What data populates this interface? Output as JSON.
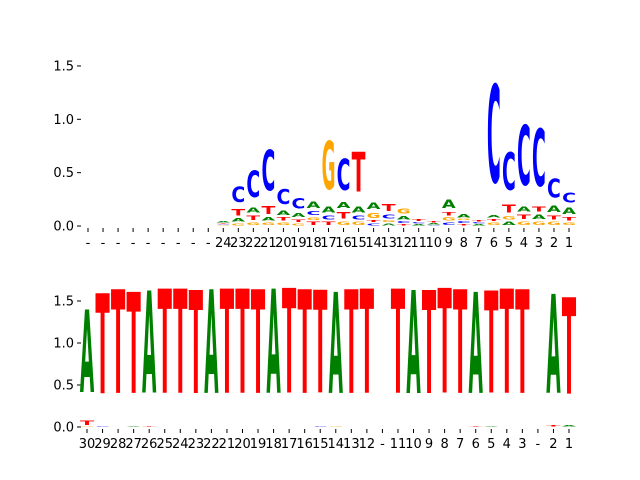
{
  "colors": {
    "A": "#008000",
    "C": "#0000ff",
    "G": "#ffa500",
    "T": "#ff0000"
  },
  "chart_data": [
    {
      "type": "sequence-logo",
      "ylim": [
        0,
        1.6
      ],
      "yticks": [
        "0.0",
        "0.5",
        "1.0",
        "1.5"
      ],
      "yticks_values": [
        0,
        0.5,
        1.0,
        1.5
      ],
      "grid": false,
      "positions": [
        {
          "label": "-",
          "stack": []
        },
        {
          "label": "-",
          "stack": []
        },
        {
          "label": "-",
          "stack": []
        },
        {
          "label": "-",
          "stack": []
        },
        {
          "label": "-",
          "stack": []
        },
        {
          "label": "-",
          "stack": []
        },
        {
          "label": "-",
          "stack": []
        },
        {
          "label": "-",
          "stack": []
        },
        {
          "label": "-",
          "stack": []
        },
        {
          "label": "24",
          "stack": [
            [
              "G",
              0.01
            ],
            [
              "C",
              0.01
            ],
            [
              "T",
              0.01
            ],
            [
              "A",
              0.02
            ]
          ]
        },
        {
          "label": "23",
          "stack": [
            [
              "G",
              0.03
            ],
            [
              "A",
              0.05
            ],
            [
              "T",
              0.1
            ],
            [
              "C",
              0.23
            ]
          ]
        },
        {
          "label": "22",
          "stack": [
            [
              "G",
              0.04
            ],
            [
              "T",
              0.07
            ],
            [
              "A",
              0.08
            ],
            [
              "C",
              0.4
            ]
          ]
        },
        {
          "label": "21",
          "stack": [
            [
              "G",
              0.04
            ],
            [
              "A",
              0.05
            ],
            [
              "T",
              0.12
            ],
            [
              "C",
              0.61
            ]
          ]
        },
        {
          "label": "20",
          "stack": [
            [
              "G",
              0.04
            ],
            [
              "T",
              0.05
            ],
            [
              "A",
              0.07
            ],
            [
              "C",
              0.22
            ]
          ]
        },
        {
          "label": "19",
          "stack": [
            [
              "G",
              0.03
            ],
            [
              "T",
              0.04
            ],
            [
              "A",
              0.06
            ],
            [
              "C",
              0.16
            ]
          ]
        },
        {
          "label": "18",
          "stack": [
            [
              "T",
              0.05
            ],
            [
              "G",
              0.04
            ],
            [
              "C",
              0.06
            ],
            [
              "A",
              0.1
            ]
          ]
        },
        {
          "label": "17",
          "stack": [
            [
              "T",
              0.05
            ],
            [
              "C",
              0.06
            ],
            [
              "A",
              0.09
            ],
            [
              "G",
              0.72
            ]
          ]
        },
        {
          "label": "16",
          "stack": [
            [
              "G",
              0.05
            ],
            [
              "T",
              0.1
            ],
            [
              "A",
              0.09
            ],
            [
              "C",
              0.47
            ]
          ]
        },
        {
          "label": "15",
          "stack": [
            [
              "G",
              0.05
            ],
            [
              "C",
              0.06
            ],
            [
              "A",
              0.09
            ],
            [
              "T",
              0.6
            ]
          ]
        },
        {
          "label": "14",
          "stack": [
            [
              "C",
              0.03
            ],
            [
              "T",
              0.03
            ],
            [
              "G",
              0.08
            ],
            [
              "A",
              0.1
            ]
          ]
        },
        {
          "label": "13",
          "stack": [
            [
              "A",
              0.03
            ],
            [
              "G",
              0.03
            ],
            [
              "C",
              0.06
            ],
            [
              "T",
              0.11
            ]
          ]
        },
        {
          "label": "12",
          "stack": [
            [
              "T",
              0.02
            ],
            [
              "C",
              0.03
            ],
            [
              "A",
              0.05
            ],
            [
              "G",
              0.08
            ]
          ]
        },
        {
          "label": "11",
          "stack": [
            [
              "A",
              0.02
            ],
            [
              "C",
              0.02
            ],
            [
              "T",
              0.03
            ]
          ]
        },
        {
          "label": "10",
          "stack": [
            [
              "C",
              0.01
            ],
            [
              "A",
              0.02
            ],
            [
              "T",
              0.02
            ]
          ]
        },
        {
          "label": "9",
          "stack": [
            [
              "C",
              0.04
            ],
            [
              "G",
              0.05
            ],
            [
              "T",
              0.05
            ],
            [
              "A",
              0.13
            ]
          ]
        },
        {
          "label": "8",
          "stack": [
            [
              "T",
              0.02
            ],
            [
              "C",
              0.03
            ],
            [
              "G",
              0.02
            ],
            [
              "A",
              0.05
            ]
          ]
        },
        {
          "label": "7",
          "stack": [
            [
              "A",
              0.02
            ],
            [
              "C",
              0.02
            ],
            [
              "T",
              0.02
            ]
          ]
        },
        {
          "label": "6",
          "stack": [
            [
              "G",
              0.04
            ],
            [
              "T",
              0.03
            ],
            [
              "A",
              0.04
            ],
            [
              "C",
              1.47
            ]
          ]
        },
        {
          "label": "5",
          "stack": [
            [
              "A",
              0.05
            ],
            [
              "G",
              0.05
            ],
            [
              "T",
              0.12
            ],
            [
              "C",
              0.57
            ]
          ]
        },
        {
          "label": "4",
          "stack": [
            [
              "G",
              0.05
            ],
            [
              "T",
              0.07
            ],
            [
              "A",
              0.08
            ],
            [
              "C",
              0.9
            ]
          ]
        },
        {
          "label": "3",
          "stack": [
            [
              "G",
              0.05
            ],
            [
              "A",
              0.07
            ],
            [
              "T",
              0.08
            ],
            [
              "C",
              0.86
            ]
          ]
        },
        {
          "label": "2",
          "stack": [
            [
              "G",
              0.05
            ],
            [
              "T",
              0.06
            ],
            [
              "A",
              0.1
            ],
            [
              "C",
              0.28
            ]
          ]
        },
        {
          "label": "1",
          "stack": [
            [
              "G",
              0.04
            ],
            [
              "T",
              0.05
            ],
            [
              "A",
              0.1
            ],
            [
              "C",
              0.15
            ]
          ]
        }
      ]
    },
    {
      "type": "sequence-logo",
      "ylim": [
        0,
        2.0
      ],
      "yticks": [
        "0.0",
        "0.5",
        "1.0",
        "1.5"
      ],
      "yticks_values": [
        0,
        0.5,
        1.0,
        1.5
      ],
      "grid": false,
      "positions": [
        {
          "label": "30",
          "stack": [
            [
              "G",
              0.01
            ],
            [
              "T",
              0.08
            ],
            [
              "A",
              1.58
            ]
          ]
        },
        {
          "label": "29",
          "stack": [
            [
              "C",
              0.01
            ],
            [
              "T",
              1.91
            ]
          ]
        },
        {
          "label": "28",
          "stack": [
            [
              "T",
              1.98
            ]
          ]
        },
        {
          "label": "27",
          "stack": [
            [
              "A",
              0.01
            ],
            [
              "T",
              1.93
            ]
          ]
        },
        {
          "label": "26",
          "stack": [
            [
              "T",
              0.01
            ],
            [
              "A",
              1.95
            ]
          ]
        },
        {
          "label": "25",
          "stack": [
            [
              "T",
              1.99
            ]
          ]
        },
        {
          "label": "24",
          "stack": [
            [
              "T",
              1.99
            ]
          ]
        },
        {
          "label": "23",
          "stack": [
            [
              "T",
              1.97
            ]
          ]
        },
        {
          "label": "22",
          "stack": [
            [
              "A",
              1.98
            ]
          ]
        },
        {
          "label": "21",
          "stack": [
            [
              "T",
              1.99
            ]
          ]
        },
        {
          "label": "20",
          "stack": [
            [
              "T",
              1.99
            ]
          ]
        },
        {
          "label": "19",
          "stack": [
            [
              "T",
              1.98
            ]
          ]
        },
        {
          "label": "18",
          "stack": [
            [
              "A",
              1.99
            ]
          ]
        },
        {
          "label": "17",
          "stack": [
            [
              "T",
              2.0
            ]
          ]
        },
        {
          "label": "16",
          "stack": [
            [
              "T",
              1.98
            ]
          ]
        },
        {
          "label": "15",
          "stack": [
            [
              "C",
              0.01
            ],
            [
              "T",
              1.96
            ]
          ]
        },
        {
          "label": "14",
          "stack": [
            [
              "G",
              0.01
            ],
            [
              "A",
              1.93
            ]
          ]
        },
        {
          "label": "13",
          "stack": [
            [
              "T",
              1.98
            ]
          ]
        },
        {
          "label": "12",
          "stack": [
            [
              "T",
              1.99
            ]
          ]
        },
        {
          "label": "-",
          "stack": []
        },
        {
          "label": "11",
          "stack": [
            [
              "T",
              1.99
            ]
          ]
        },
        {
          "label": "10",
          "stack": [
            [
              "A",
              1.97
            ]
          ]
        },
        {
          "label": "9",
          "stack": [
            [
              "T",
              1.97
            ]
          ]
        },
        {
          "label": "8",
          "stack": [
            [
              "T",
              2.0
            ]
          ]
        },
        {
          "label": "7",
          "stack": [
            [
              "T",
              1.98
            ]
          ]
        },
        {
          "label": "6",
          "stack": [
            [
              "T",
              0.01
            ],
            [
              "A",
              1.93
            ]
          ]
        },
        {
          "label": "5",
          "stack": [
            [
              "A",
              0.01
            ],
            [
              "T",
              1.95
            ]
          ]
        },
        {
          "label": "4",
          "stack": [
            [
              "T",
              1.99
            ]
          ]
        },
        {
          "label": "3",
          "stack": [
            [
              "T",
              1.98
            ]
          ]
        },
        {
          "label": "-",
          "stack": []
        },
        {
          "label": "2",
          "stack": [
            [
              "T",
              0.02
            ],
            [
              "A",
              1.89
            ]
          ]
        },
        {
          "label": "1",
          "stack": [
            [
              "A",
              0.02
            ],
            [
              "T",
              1.84
            ]
          ]
        }
      ]
    }
  ]
}
